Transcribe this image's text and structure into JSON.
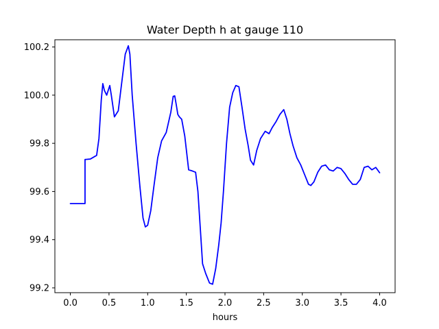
{
  "chart_data": {
    "type": "line",
    "title": "Water Depth h at gauge 110",
    "xlabel": "hours",
    "ylabel": "",
    "xlim": [
      -0.2,
      4.2
    ],
    "ylim": [
      99.18,
      100.23
    ],
    "grid": false,
    "xticks": [
      0.0,
      0.5,
      1.0,
      1.5,
      2.0,
      2.5,
      3.0,
      3.5,
      4.0
    ],
    "xtick_labels": [
      "0.0",
      "0.5",
      "1.0",
      "1.5",
      "2.0",
      "2.5",
      "3.0",
      "3.5",
      "4.0"
    ],
    "yticks": [
      99.2,
      99.4,
      99.6,
      99.8,
      100.0,
      100.2
    ],
    "ytick_labels": [
      "99.2",
      "99.4",
      "99.6",
      "99.8",
      "100.0",
      "100.2"
    ],
    "series": [
      {
        "color": "#0000ff",
        "x": [
          0.0,
          0.19,
          0.19,
          0.2,
          0.26,
          0.34,
          0.37,
          0.4,
          0.42,
          0.44,
          0.47,
          0.51,
          0.53,
          0.57,
          0.62,
          0.66,
          0.71,
          0.75,
          0.77,
          0.8,
          0.85,
          0.9,
          0.94,
          0.97,
          1.0,
          1.04,
          1.08,
          1.13,
          1.18,
          1.24,
          1.3,
          1.33,
          1.35,
          1.37,
          1.39,
          1.41,
          1.44,
          1.48,
          1.53,
          1.58,
          1.62,
          1.65,
          1.68,
          1.71,
          1.75,
          1.8,
          1.84,
          1.88,
          1.92,
          1.95,
          1.98,
          2.02,
          2.06,
          2.1,
          2.14,
          2.18,
          2.22,
          2.26,
          2.3,
          2.33,
          2.37,
          2.41,
          2.46,
          2.52,
          2.57,
          2.61,
          2.66,
          2.71,
          2.76,
          2.8,
          2.84,
          2.88,
          2.93,
          2.98,
          3.03,
          3.08,
          3.11,
          3.15,
          3.2,
          3.25,
          3.3,
          3.35,
          3.4,
          3.45,
          3.5,
          3.55,
          3.6,
          3.65,
          3.7,
          3.75,
          3.8,
          3.85,
          3.9,
          3.95,
          4.0
        ],
        "y": [
          99.55,
          99.55,
          99.733,
          99.733,
          99.735,
          99.75,
          99.82,
          99.98,
          100.048,
          100.02,
          100.0,
          100.04,
          100.0,
          99.91,
          99.935,
          100.04,
          100.17,
          100.205,
          100.17,
          100.0,
          99.8,
          99.62,
          99.49,
          99.453,
          99.46,
          99.52,
          99.62,
          99.74,
          99.81,
          99.845,
          99.93,
          99.995,
          99.997,
          99.96,
          99.92,
          99.91,
          99.9,
          99.83,
          99.69,
          99.685,
          99.68,
          99.6,
          99.45,
          99.3,
          99.26,
          99.22,
          99.215,
          99.28,
          99.38,
          99.47,
          99.6,
          99.8,
          99.95,
          100.01,
          100.04,
          100.035,
          99.95,
          99.86,
          99.79,
          99.73,
          99.71,
          99.77,
          99.82,
          99.85,
          99.84,
          99.865,
          99.89,
          99.92,
          99.94,
          99.9,
          99.84,
          99.79,
          99.74,
          99.71,
          99.67,
          99.63,
          99.625,
          99.64,
          99.68,
          99.705,
          99.71,
          99.69,
          99.685,
          99.7,
          99.695,
          99.675,
          99.65,
          99.63,
          99.63,
          99.65,
          99.7,
          99.705,
          99.69,
          99.7,
          99.678
        ]
      }
    ]
  }
}
